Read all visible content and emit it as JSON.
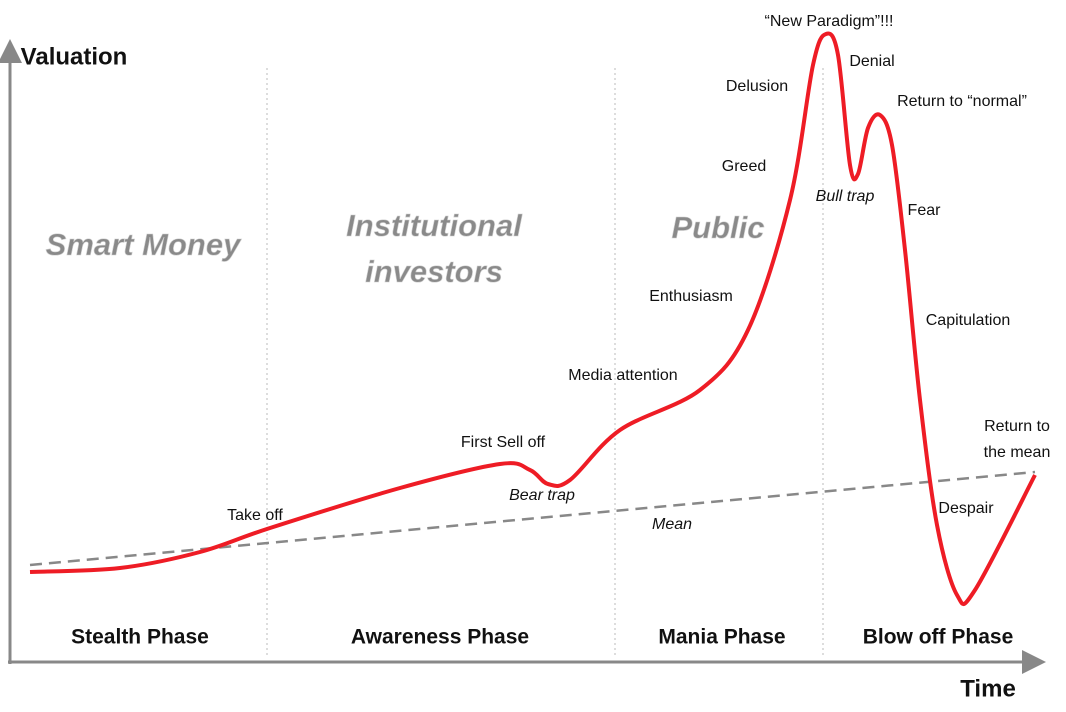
{
  "axes": {
    "y_label": "Valuation",
    "x_label": "Time"
  },
  "phases": [
    "Stealth Phase",
    "Awareness Phase",
    "Mania Phase",
    "Blow off Phase"
  ],
  "groups": [
    [
      "Smart Money"
    ],
    [
      "Institutional",
      "investors"
    ],
    [
      "Public"
    ]
  ],
  "annotations": [
    {
      "text": [
        "Take off"
      ]
    },
    {
      "text": [
        "First Sell off"
      ]
    },
    {
      "text": [
        "Bear trap"
      ]
    },
    {
      "text": [
        "Media attention"
      ]
    },
    {
      "text": [
        "Mean"
      ]
    },
    {
      "text": [
        "Enthusiasm"
      ]
    },
    {
      "text": [
        "Greed"
      ]
    },
    {
      "text": [
        "Delusion"
      ]
    },
    {
      "text": [
        "“New Paradigm”!!!"
      ]
    },
    {
      "text": [
        "Denial"
      ]
    },
    {
      "text": [
        "Return to “normal”"
      ]
    },
    {
      "text": [
        "Bull trap"
      ]
    },
    {
      "text": [
        "Fear"
      ]
    },
    {
      "text": [
        "Capitulation"
      ]
    },
    {
      "text": [
        "Despair"
      ]
    },
    {
      "text": [
        "Return to",
        "the mean"
      ]
    }
  ]
}
